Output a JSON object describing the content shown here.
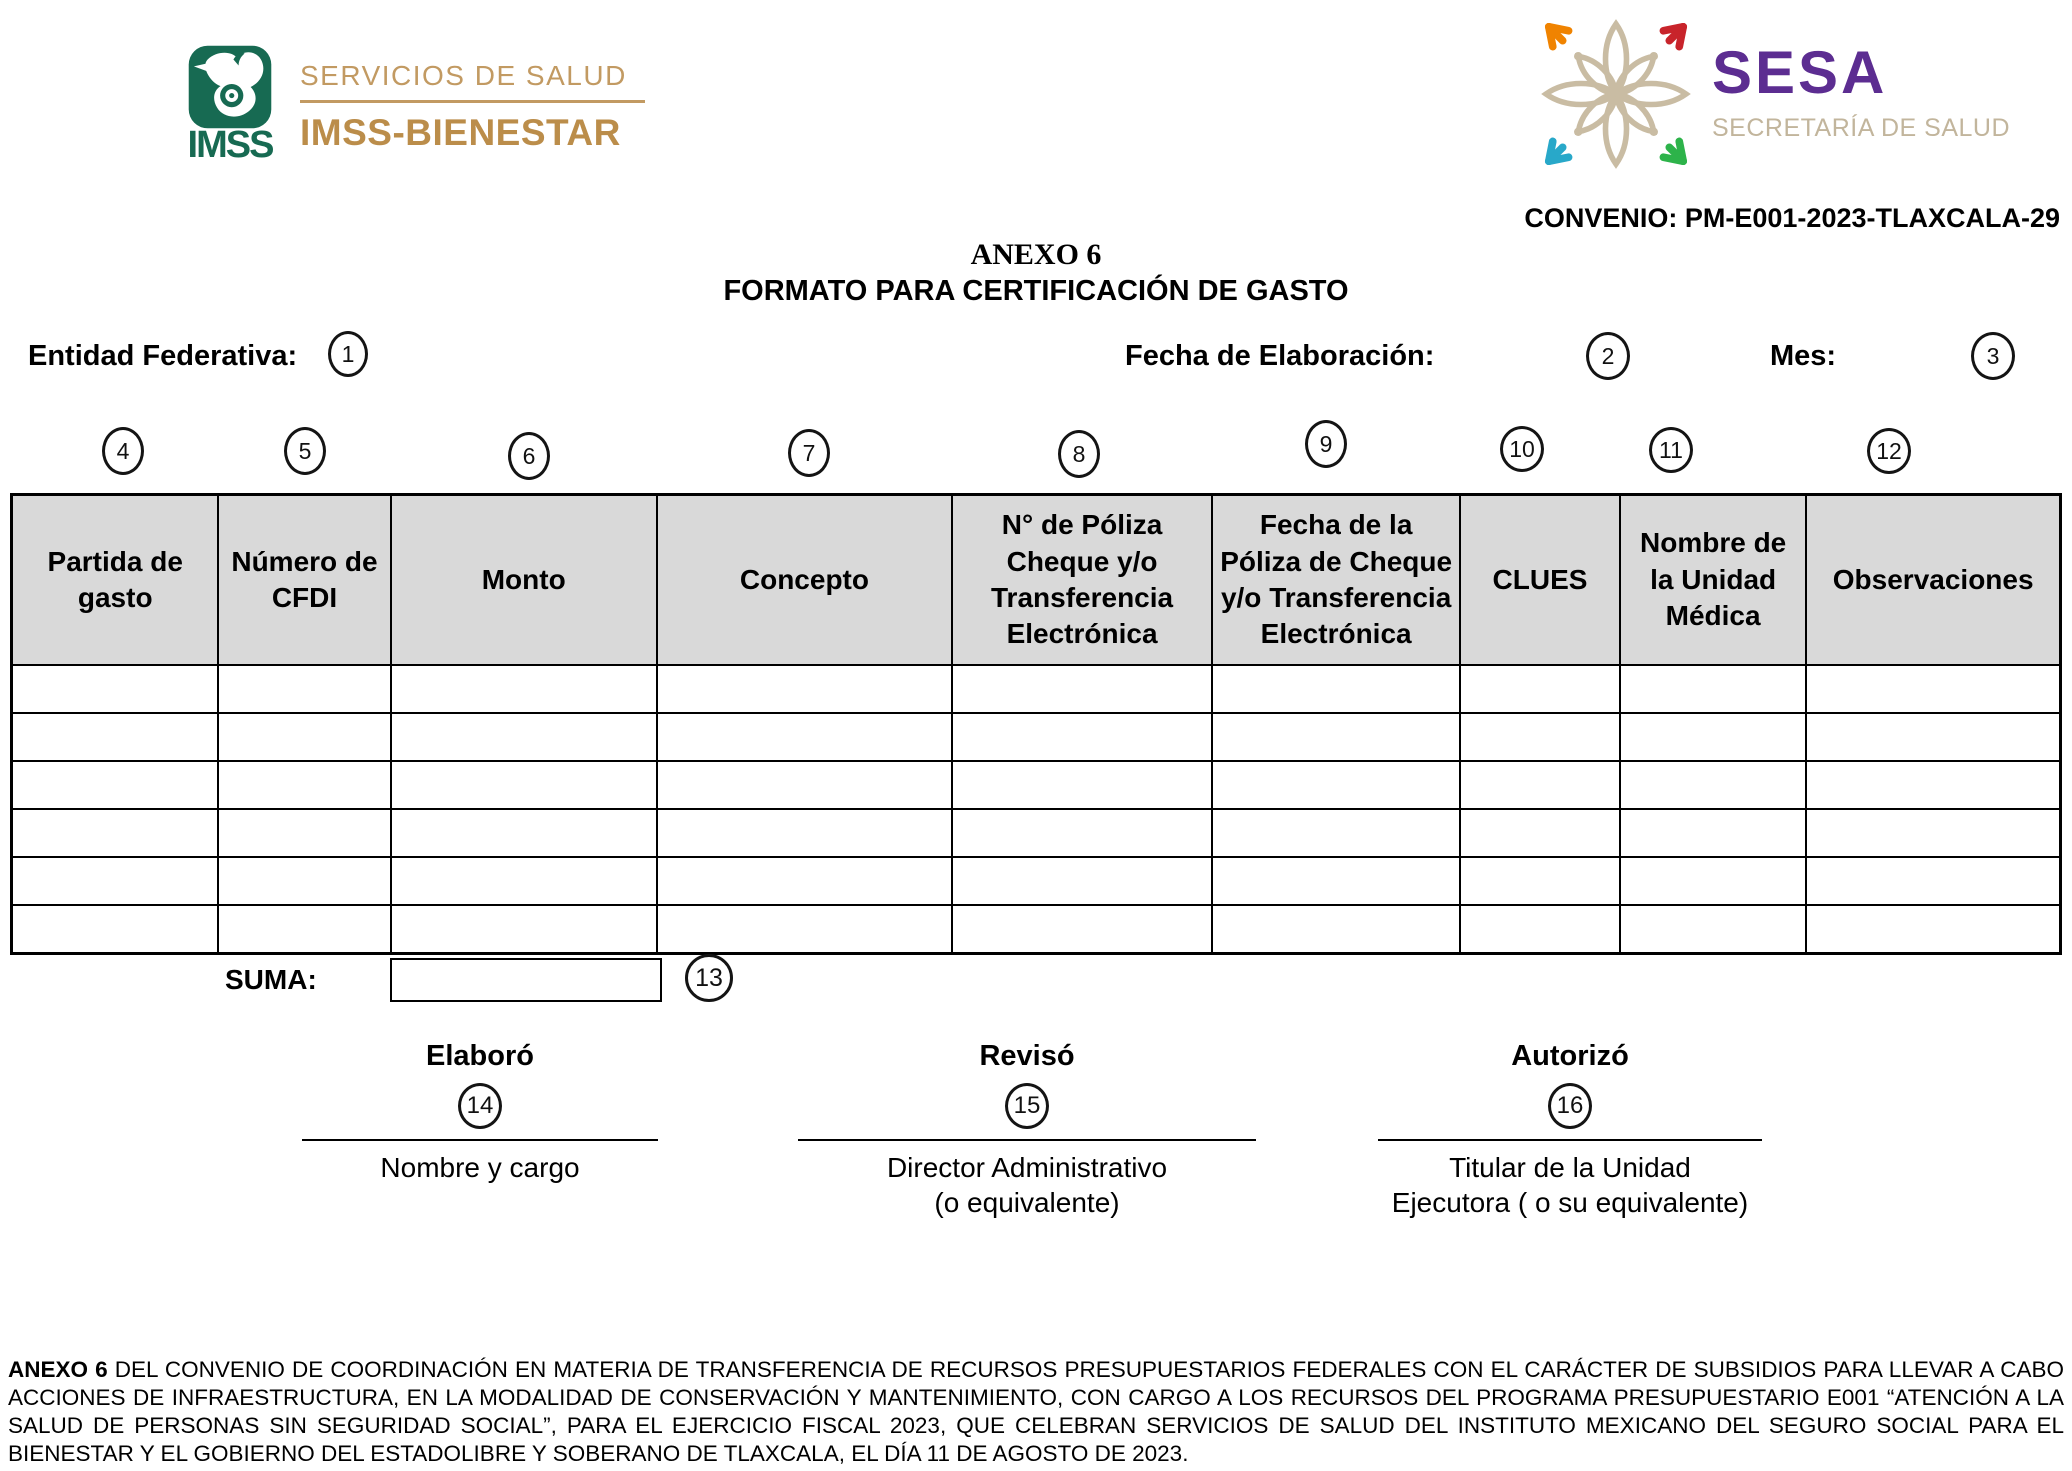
{
  "header": {
    "imss_logo": {
      "wordmark": "IMSS",
      "tagline": "SERVICIOS DE SALUD",
      "program": "IMSS-BIENESTAR",
      "green": "#176a52",
      "gold": "#c29a62",
      "gold_dark": "#bb8d4a"
    },
    "sesa_logo": {
      "acronym": "SESA",
      "subtitle": "SECRETARÍA DE SALUD",
      "purple": "#5c2d91",
      "tan": "#c2b59c",
      "accent_orange": "#f08300",
      "accent_red": "#c8242b",
      "accent_teal": "#28a8c9",
      "accent_green": "#2db34a"
    },
    "convenio": "CONVENIO: PM-E001-2023-TLAXCALA-29"
  },
  "title": {
    "line1": "ANEXO 6",
    "line2": "FORMATO PARA CERTIFICACIÓN DE GASTO"
  },
  "fields": {
    "entidad_label": "Entidad Federativa:",
    "fecha_label": "Fecha de Elaboración:",
    "mes_label": "Mes:"
  },
  "circle_numbers": [
    "1",
    "2",
    "3",
    "4",
    "5",
    "6",
    "7",
    "8",
    "9",
    "10",
    "11",
    "12",
    "13",
    "14",
    "15",
    "16"
  ],
  "table": {
    "header_bg": "#d9d9d9",
    "empty_rows": 6,
    "headers": [
      "Partida de gasto",
      "Número de CFDI",
      "Monto",
      "Concepto",
      "N° de Póliza Cheque y/o Transferencia Electrónica",
      "Fecha de la Póliza de Cheque y/o Transferencia Electrónica",
      "CLUES",
      "Nombre de la Unidad Médica",
      "Observaciones"
    ]
  },
  "suma": {
    "label": "SUMA:"
  },
  "signatures": [
    {
      "title": "Elaboró",
      "captions": [
        "Nombre y cargo"
      ]
    },
    {
      "title": "Revisó",
      "captions": [
        "Director Administrativo",
        "(o equivalente)"
      ]
    },
    {
      "title": "Autorizó",
      "captions": [
        "Titular de la Unidad",
        "Ejecutora ( o su equivalente)"
      ]
    }
  ],
  "footnote": {
    "prefix": "ANEXO 6",
    "body": " DEL CONVENIO DE COORDINACIÓN EN MATERIA DE TRANSFERENCIA DE RECURSOS PRESUPUESTARIOS FEDERALES CON EL CARÁCTER DE SUBSIDIOS PARA LLEVAR A CABO ACCIONES DE INFRAESTRUCTURA, EN LA MODALIDAD DE CONSERVACIÓN Y MANTENIMIENTO, CON CARGO A LOS RECURSOS DEL PROGRAMA PRESUPUESTARIO E001 “ATENCIÓN A LA SALUD DE PERSONAS SIN SEGURIDAD SOCIAL”, PARA EL EJERCICIO FISCAL 2023, QUE CELEBRAN SERVICIOS DE SALUD DEL INSTITUTO MEXICANO DEL SEGURO SOCIAL PARA EL BIENESTAR Y EL GOBIERNO DEL ESTADOLIBRE Y SOBERANO DE TLAXCALA, EL DÍA 11 DE AGOSTO DE 2023."
  }
}
